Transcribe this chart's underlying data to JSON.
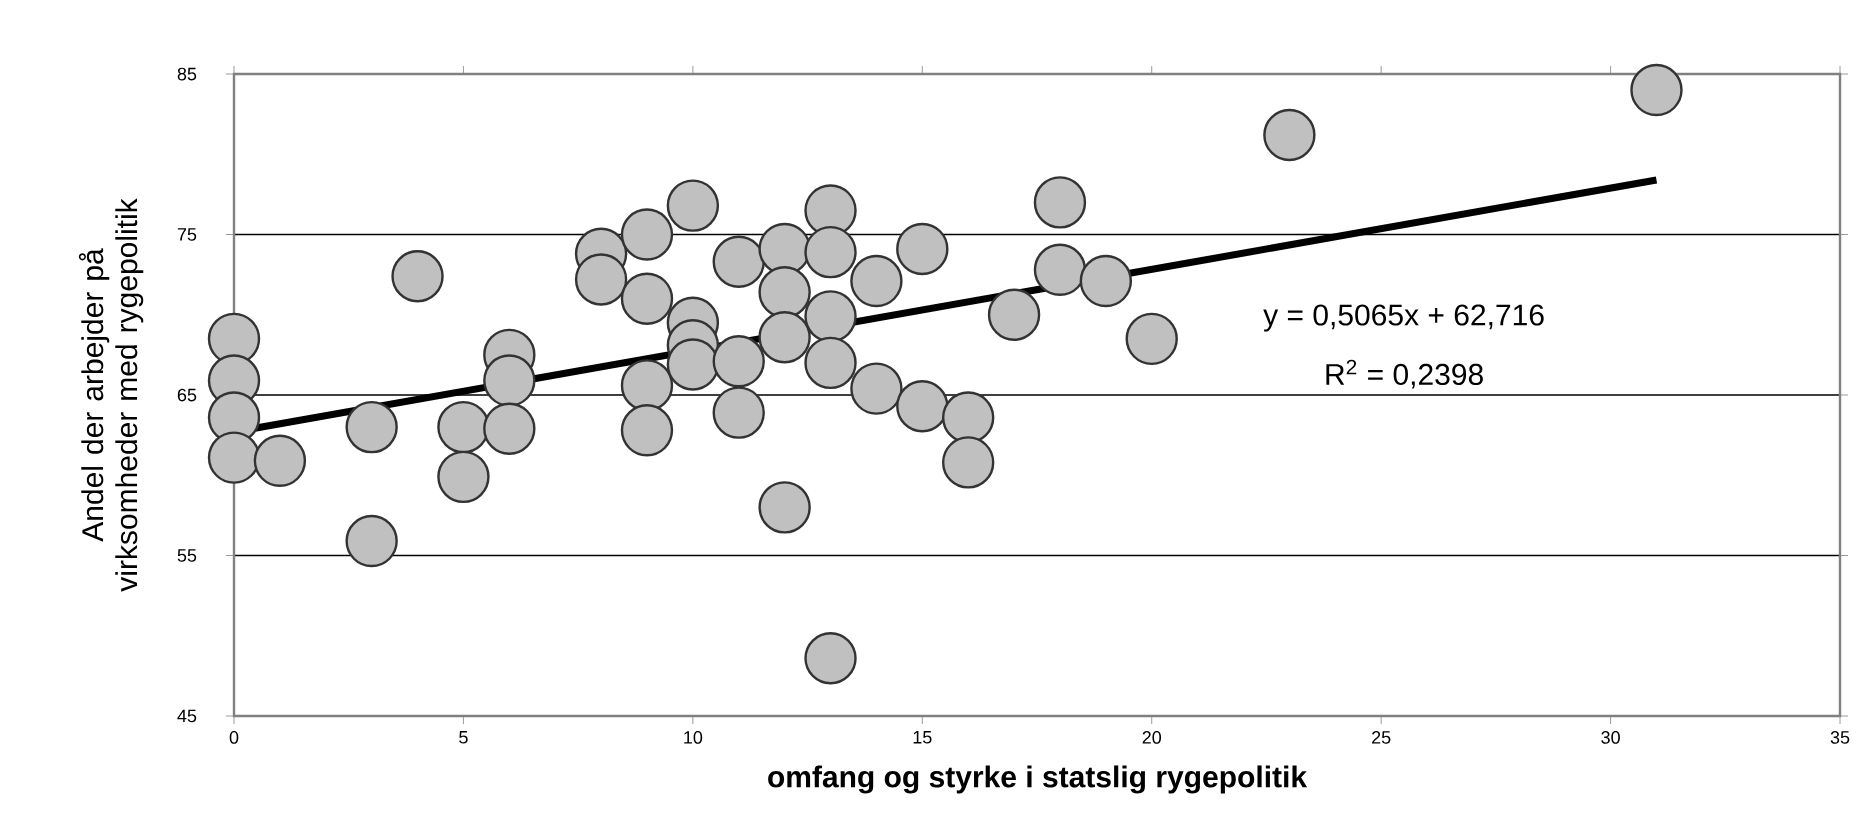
{
  "chart_data": {
    "type": "scatter",
    "xlabel": "omfang og styrke i statslig rygepolitik",
    "ylabel": "Andel der arbejder på virksomheder med rygepolitik",
    "annotations": [
      "y = 0,5065x + 62,716",
      "R$^{2}$ = 0,2398"
    ],
    "xlim": [
      0,
      35
    ],
    "xticks": [
      0,
      5,
      10,
      15,
      20,
      25,
      30,
      35
    ],
    "ylim": [
      45,
      85
    ],
    "yticks": [
      45,
      55,
      65,
      75,
      85
    ],
    "grid": "y",
    "series": [
      {
        "color": "#c0c0c0",
        "marker": "circle",
        "x": [
          0,
          0,
          0,
          0,
          1,
          3,
          3,
          4,
          5,
          5,
          6,
          6,
          6,
          8,
          8,
          9,
          9,
          9,
          9,
          10,
          10,
          10,
          10,
          11,
          11,
          11,
          12,
          12,
          12,
          12,
          13,
          13,
          13,
          13,
          13,
          14,
          14,
          15,
          15,
          16,
          16,
          17,
          18,
          18,
          19,
          20,
          23,
          31
        ],
        "values": [
          68.5,
          65.9,
          63.6,
          61.1,
          60.9,
          63,
          55.9,
          72.4,
          63,
          59.9,
          67.5,
          65.9,
          62.9,
          73.8,
          72.2,
          75,
          71,
          65.6,
          62.8,
          76.8,
          69.5,
          68.1,
          66.9,
          73.3,
          67.1,
          63.9,
          74.1,
          71.4,
          68.6,
          58,
          76.5,
          73.9,
          69.9,
          67,
          48.6,
          72.1,
          65.4,
          74.1,
          64.3,
          63.6,
          60.8,
          70,
          77,
          72.8,
          72.1,
          68.5,
          81.2,
          84
        ]
      },
      {
        "type": "line",
        "color": "#000000",
        "marker": "none",
        "x": [
          0,
          31
        ],
        "values": [
          62.7,
          78.4
        ]
      }
    ]
  }
}
